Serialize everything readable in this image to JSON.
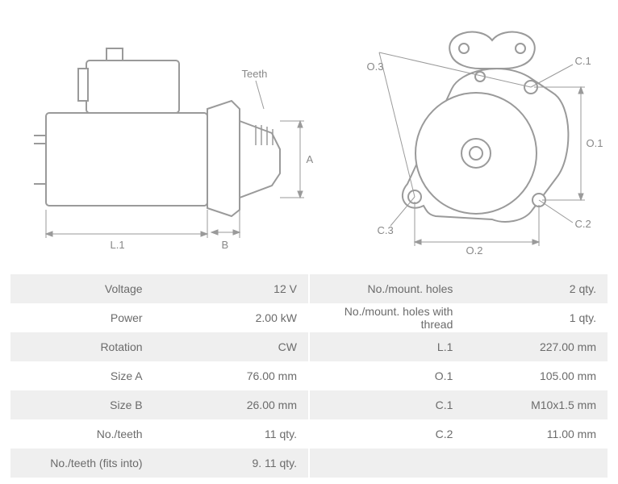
{
  "diagram": {
    "stroke_color": "#9a9a9a",
    "fill_color": "#ffffff",
    "labels": {
      "teeth": "Teeth",
      "A": "A",
      "B": "B",
      "L1": "L.1",
      "O1": "O.1",
      "O2": "O.2",
      "O3": "O.3",
      "C1": "C.1",
      "C2": "C.2",
      "C3": "C.3"
    }
  },
  "specs": {
    "rows": [
      {
        "k1": "Voltage",
        "v1": "12 V",
        "k2": "No./mount. holes",
        "v2": "2 qty."
      },
      {
        "k1": "Power",
        "v1": "2.00 kW",
        "k2": "No./mount. holes with thread",
        "v2": "1 qty."
      },
      {
        "k1": "Rotation",
        "v1": "CW",
        "k2": "L.1",
        "v2": "227.00 mm"
      },
      {
        "k1": "Size A",
        "v1": "76.00 mm",
        "k2": "O.1",
        "v2": "105.00 mm"
      },
      {
        "k1": "Size B",
        "v1": "26.00 mm",
        "k2": "C.1",
        "v2": "M10x1.5 mm"
      },
      {
        "k1": "No./teeth",
        "v1": "11 qty.",
        "k2": "C.2",
        "v2": "11.00 mm"
      },
      {
        "k1": "No./teeth (fits into)",
        "v1": "9. 11 qty.",
        "k2": "",
        "v2": ""
      }
    ],
    "row_bg_odd": "#efefef",
    "row_bg_even": "#ffffff",
    "text_color": "#6b6b6b",
    "font_size": 14
  }
}
